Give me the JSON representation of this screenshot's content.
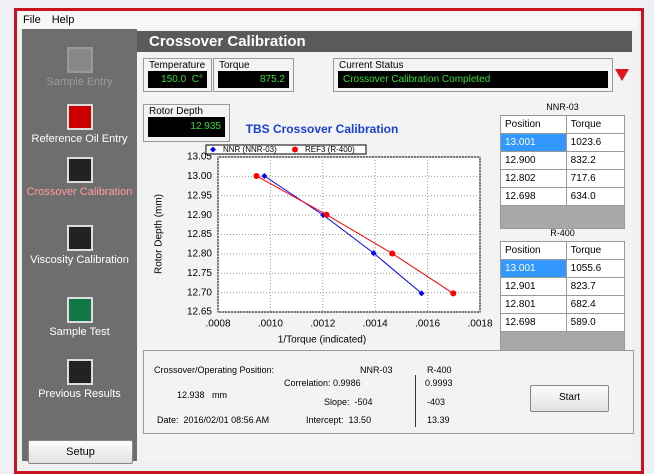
{
  "menu": [
    "File",
    "Help"
  ],
  "sidebar": {
    "items": [
      "Sample Entry",
      "Reference Oil Entry",
      "Crossover Calibration",
      "Viscosity Calibration",
      "Sample Test",
      "Previous Results"
    ],
    "setup": "Setup"
  },
  "header": {
    "title": "Crossover Calibration"
  },
  "fields": {
    "temperature": {
      "label": "Temperature",
      "value": "150.0",
      "unit": "C°"
    },
    "torque": {
      "label": "Torque",
      "value": "875.2"
    },
    "status": {
      "label": "Current Status",
      "value": "Crossover Calibration Completed"
    },
    "rotor_depth": {
      "label": "Rotor Depth",
      "value": "12.935"
    }
  },
  "chart_data": {
    "type": "line",
    "title": "TBS Crossover Calibration",
    "x_label": "1/Torque (indicated)",
    "y_label": "Rotor Depth (mm)",
    "series": [
      {
        "name": "NNR (NNR-03)",
        "color": "#0000ff",
        "marker": "diamond",
        "x": [
          0.000977,
          0.001202,
          0.001394,
          0.001577
        ],
        "values": [
          13.001,
          12.9,
          12.802,
          12.698
        ]
      },
      {
        "name": "REF3 (R-400)",
        "color": "#ff0000",
        "marker": "circle",
        "x": [
          0.000947,
          0.001214,
          0.001465,
          0.001698
        ],
        "values": [
          13.001,
          12.901,
          12.801,
          12.698
        ]
      }
    ],
    "xlim": [
      0.0008,
      0.0018
    ],
    "xticks": [
      {
        "value": 0.0008,
        "label": ".0008"
      },
      {
        "value": 0.001,
        "label": ".0010"
      },
      {
        "value": 0.0012,
        "label": ".0012"
      },
      {
        "value": 0.0014,
        "label": ".0014"
      },
      {
        "value": 0.0016,
        "label": ".0016"
      },
      {
        "value": 0.0018,
        "label": ".0018"
      }
    ],
    "ylim": [
      12.65,
      13.05
    ],
    "yticks": [
      12.65,
      {
        "value": 12.7,
        "label": "12.70"
      },
      12.75,
      {
        "value": 12.8,
        "label": "12.80"
      },
      12.85,
      {
        "value": 12.9,
        "label": "12.90"
      },
      12.95,
      {
        "value": 13,
        "label": "13.00"
      },
      13.05
    ],
    "grid": true
  },
  "tables": [
    {
      "title": "NNR-03",
      "columns": [
        "Position",
        "Torque"
      ],
      "rows": [
        [
          "13.001",
          "1023.6"
        ],
        [
          "12.900",
          "832.2"
        ],
        [
          "12.802",
          "717.6"
        ],
        [
          "12.698",
          "634.0"
        ]
      ]
    },
    {
      "title": "R-400",
      "columns": [
        "Position",
        "Torque"
      ],
      "rows": [
        [
          "13.001",
          "1055.6"
        ],
        [
          "12.901",
          "823.7"
        ],
        [
          "12.801",
          "682.4"
        ],
        [
          "12.698",
          "589.0"
        ]
      ]
    }
  ],
  "summary": {
    "position_label": "Crossover/Operating Position:",
    "position_value": "12.938",
    "position_unit": "mm",
    "date_label": "Date:",
    "date": "2016/02/01 08:56 AM",
    "col1": "NNR-03",
    "col2": "R-400",
    "correlation_label": "Correlation:",
    "correlation1": "0.9986",
    "correlation2": "0.9993",
    "slope_label": "Slope:",
    "slope1": "-504",
    "slope2": "-403",
    "intercept_label": "Intercept:",
    "intercept1": "13.50",
    "intercept2": "13.39"
  },
  "start": "Start"
}
